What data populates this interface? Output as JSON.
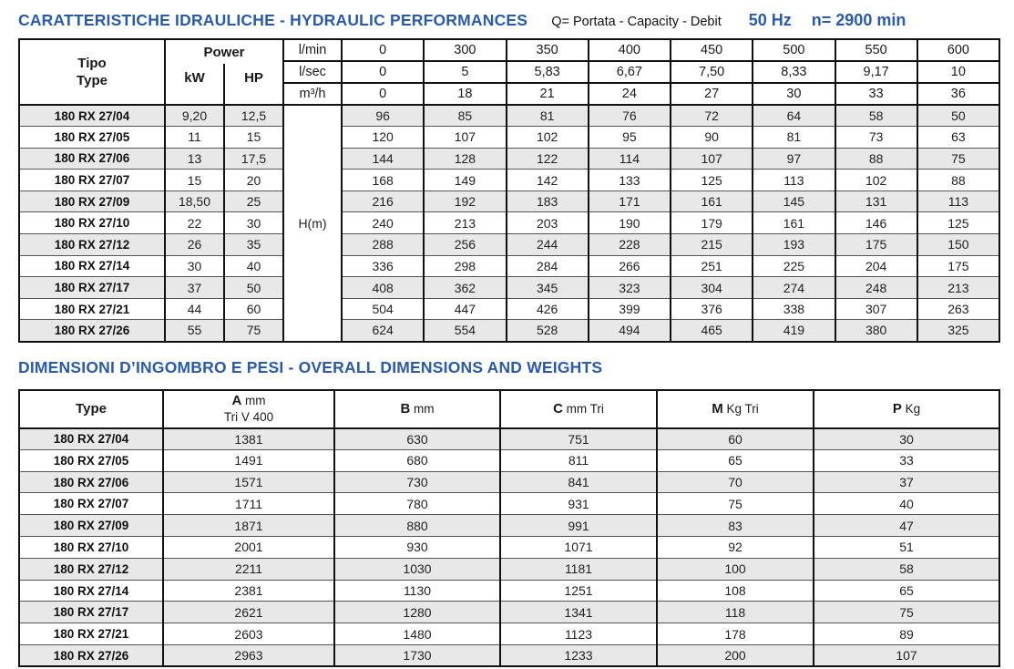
{
  "colors": {
    "accent_blue": "#2b5aa7",
    "row_shade": "#e8e8e8",
    "border": "#111111"
  },
  "section1": {
    "title": "CARATTERISTICHE IDRAULICHE - HYDRAULIC PERFORMANCES",
    "subtitle": "Q= Portata - Capacity - Debit",
    "frequency": "50 Hz",
    "speed": "n= 2900 min"
  },
  "table1": {
    "col_type_line1": "Tipo",
    "col_type_line2": "Type",
    "col_power": "Power",
    "col_kw": "kW",
    "col_hp": "HP",
    "unit_rows": [
      "l/min",
      "l/sec",
      "m³/h"
    ],
    "flow_lmin": [
      "0",
      "300",
      "350",
      "400",
      "450",
      "500",
      "550",
      "600"
    ],
    "flow_lsec": [
      "0",
      "5",
      "5,83",
      "6,67",
      "7,50",
      "8,33",
      "9,17",
      "10"
    ],
    "flow_m3h": [
      "0",
      "18",
      "21",
      "24",
      "27",
      "30",
      "33",
      "36"
    ],
    "head_label": "H(m)",
    "rows": [
      {
        "type": "180 RX 27/04",
        "kw": "9,20",
        "hp": "12,5",
        "h": [
          "96",
          "85",
          "81",
          "76",
          "72",
          "64",
          "58",
          "50"
        ]
      },
      {
        "type": "180 RX 27/05",
        "kw": "11",
        "hp": "15",
        "h": [
          "120",
          "107",
          "102",
          "95",
          "90",
          "81",
          "73",
          "63"
        ]
      },
      {
        "type": "180 RX 27/06",
        "kw": "13",
        "hp": "17,5",
        "h": [
          "144",
          "128",
          "122",
          "114",
          "107",
          "97",
          "88",
          "75"
        ]
      },
      {
        "type": "180 RX 27/07",
        "kw": "15",
        "hp": "20",
        "h": [
          "168",
          "149",
          "142",
          "133",
          "125",
          "113",
          "102",
          "88"
        ]
      },
      {
        "type": "180 RX 27/09",
        "kw": "18,50",
        "hp": "25",
        "h": [
          "216",
          "192",
          "183",
          "171",
          "161",
          "145",
          "131",
          "113"
        ]
      },
      {
        "type": "180 RX 27/10",
        "kw": "22",
        "hp": "30",
        "h": [
          "240",
          "213",
          "203",
          "190",
          "179",
          "161",
          "146",
          "125"
        ]
      },
      {
        "type": "180 RX 27/12",
        "kw": "26",
        "hp": "35",
        "h": [
          "288",
          "256",
          "244",
          "228",
          "215",
          "193",
          "175",
          "150"
        ]
      },
      {
        "type": "180 RX 27/14",
        "kw": "30",
        "hp": "40",
        "h": [
          "336",
          "298",
          "284",
          "266",
          "251",
          "225",
          "204",
          "175"
        ]
      },
      {
        "type": "180 RX 27/17",
        "kw": "37",
        "hp": "50",
        "h": [
          "408",
          "362",
          "345",
          "323",
          "304",
          "274",
          "248",
          "213"
        ]
      },
      {
        "type": "180 RX 27/21",
        "kw": "44",
        "hp": "60",
        "h": [
          "504",
          "447",
          "426",
          "399",
          "376",
          "338",
          "307",
          "263"
        ]
      },
      {
        "type": "180 RX 27/26",
        "kw": "55",
        "hp": "75",
        "h": [
          "624",
          "554",
          "528",
          "494",
          "465",
          "419",
          "380",
          "325"
        ]
      }
    ]
  },
  "section2": {
    "title": "DIMENSIONI D’INGOMBRO E PESI - OVERALL DIMENSIONS AND WEIGHTS"
  },
  "table2": {
    "headers": [
      {
        "bold": "Type",
        "unit": "",
        "sub": ""
      },
      {
        "bold": "A",
        "unit": "mm",
        "sub": "Tri V 400"
      },
      {
        "bold": "B",
        "unit": "mm",
        "sub": ""
      },
      {
        "bold": "C",
        "unit": "mm Tri",
        "sub": ""
      },
      {
        "bold": "M",
        "unit": "Kg Tri",
        "sub": ""
      },
      {
        "bold": "P",
        "unit": "Kg",
        "sub": ""
      }
    ],
    "rows": [
      {
        "type": "180 RX 27/04",
        "values": [
          "1381",
          "630",
          "751",
          "60",
          "30"
        ]
      },
      {
        "type": "180 RX 27/05",
        "values": [
          "1491",
          "680",
          "811",
          "65",
          "33"
        ]
      },
      {
        "type": "180 RX 27/06",
        "values": [
          "1571",
          "730",
          "841",
          "70",
          "37"
        ]
      },
      {
        "type": "180 RX 27/07",
        "values": [
          "1711",
          "780",
          "931",
          "75",
          "40"
        ]
      },
      {
        "type": "180 RX 27/09",
        "values": [
          "1871",
          "880",
          "991",
          "83",
          "47"
        ]
      },
      {
        "type": "180 RX 27/10",
        "values": [
          "2001",
          "930",
          "1071",
          "92",
          "51"
        ]
      },
      {
        "type": "180 RX 27/12",
        "values": [
          "2211",
          "1030",
          "1181",
          "100",
          "58"
        ]
      },
      {
        "type": "180 RX 27/14",
        "values": [
          "2381",
          "1130",
          "1251",
          "108",
          "65"
        ]
      },
      {
        "type": "180 RX 27/17",
        "values": [
          "2621",
          "1280",
          "1341",
          "118",
          "75"
        ]
      },
      {
        "type": "180 RX 27/21",
        "values": [
          "2603",
          "1480",
          "1123",
          "178",
          "89"
        ]
      },
      {
        "type": "180 RX 27/26",
        "values": [
          "2963",
          "1730",
          "1233",
          "200",
          "107"
        ]
      }
    ]
  }
}
